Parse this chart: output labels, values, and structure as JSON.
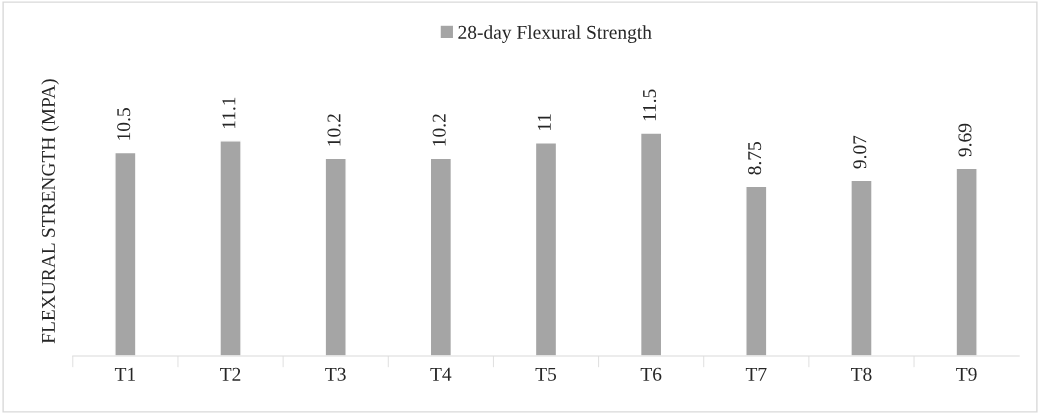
{
  "chart_data": {
    "type": "bar",
    "categories": [
      "T1",
      "T2",
      "T3",
      "T4",
      "T5",
      "T6",
      "T7",
      "T8",
      "T9"
    ],
    "series": [
      {
        "name": "28-day Flexural Strength",
        "color": "#a5a5a5",
        "values": [
          10.5,
          11.1,
          10.2,
          10.2,
          11,
          11.5,
          8.75,
          9.07,
          9.69
        ]
      }
    ],
    "ylabel": "FLEXURAL STRENGTH (MPA)",
    "data_labels": true,
    "legend": "top",
    "grid": false
  }
}
